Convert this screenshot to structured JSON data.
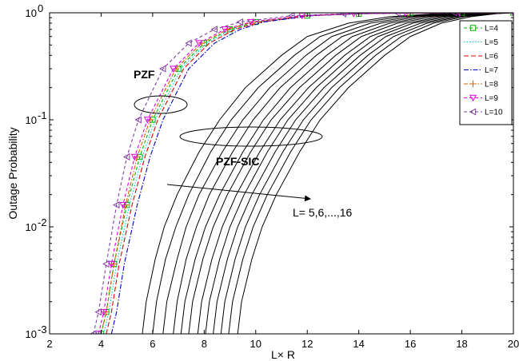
{
  "chart_data": {
    "type": "line",
    "xlabel": "L× R",
    "ylabel": "Outage Probability",
    "xlim": [
      2,
      20
    ],
    "ylim": [
      0.001,
      1
    ],
    "yscale": "log",
    "x_ticks": [
      "2",
      "4",
      "6",
      "8",
      "10",
      "12",
      "14",
      "16",
      "18",
      "20"
    ],
    "y_ticks": [
      {
        "base": "10",
        "exp": "-3"
      },
      {
        "base": "10",
        "exp": "-2"
      },
      {
        "base": "10",
        "exp": "-1"
      },
      {
        "base": "10",
        "exp": "0"
      }
    ],
    "legend_position": "top-right",
    "annotations": {
      "pzf": "PZF",
      "pzf_sic": "PZF-SIC",
      "range": "L= 5,6,...,16"
    },
    "pzf_series": [
      {
        "name": "L=4",
        "color": "#00b000",
        "dash": "4,3",
        "marker": "square",
        "x": [
          4.0,
          4.2,
          4.5,
          5.0,
          5.5,
          6.0,
          7.0,
          8.0,
          9.0,
          10.0,
          12.0,
          14.0,
          16.0,
          18.0,
          20.0
        ],
        "y": [
          0.001,
          0.0016,
          0.0045,
          0.016,
          0.045,
          0.1,
          0.3,
          0.52,
          0.7,
          0.82,
          0.94,
          0.98,
          0.995,
          0.999,
          1.0
        ]
      },
      {
        "name": "L=5",
        "color": "#00c8c8",
        "dash": "1.5,2",
        "marker": "none",
        "x": [
          4.1,
          4.3,
          4.6,
          5.1,
          5.6,
          6.1,
          7.1,
          8.1,
          9.1,
          10.1,
          12.0,
          14.0,
          16.0,
          18.0,
          20.0
        ],
        "y": [
          0.001,
          0.0016,
          0.0045,
          0.016,
          0.045,
          0.1,
          0.3,
          0.52,
          0.7,
          0.82,
          0.94,
          0.98,
          0.995,
          0.999,
          1.0
        ]
      },
      {
        "name": "L=6",
        "color": "#e00000",
        "dash": "6,3",
        "marker": "none",
        "x": [
          4.2,
          4.4,
          4.7,
          5.2,
          5.7,
          6.2,
          7.2,
          8.2,
          9.2,
          10.2,
          12.1,
          14.0,
          16.0,
          18.0,
          20.0
        ],
        "y": [
          0.001,
          0.0016,
          0.0045,
          0.016,
          0.045,
          0.1,
          0.3,
          0.52,
          0.7,
          0.82,
          0.94,
          0.98,
          0.995,
          0.999,
          1.0
        ]
      },
      {
        "name": "L=7",
        "color": "#0000c0",
        "dash": "6,2,1.5,2",
        "marker": "none",
        "x": [
          4.4,
          4.6,
          4.9,
          5.4,
          5.9,
          6.4,
          7.4,
          8.4,
          9.4,
          10.3,
          12.2,
          14.1,
          16.0,
          18.0,
          20.0
        ],
        "y": [
          0.001,
          0.0016,
          0.0045,
          0.016,
          0.045,
          0.1,
          0.3,
          0.52,
          0.7,
          0.82,
          0.94,
          0.98,
          0.995,
          0.999,
          1.0
        ]
      },
      {
        "name": "L=8",
        "color": "#e06000",
        "dash": "5,2,1.5,2",
        "marker": "plus",
        "x": [
          4.0,
          4.2,
          4.5,
          4.95,
          5.4,
          5.9,
          6.9,
          7.9,
          8.9,
          9.9,
          11.9,
          13.9,
          15.9,
          18.0,
          20.0
        ],
        "y": [
          0.001,
          0.0016,
          0.0045,
          0.016,
          0.045,
          0.1,
          0.3,
          0.52,
          0.7,
          0.82,
          0.94,
          0.98,
          0.995,
          0.999,
          1.0
        ]
      },
      {
        "name": "L=9",
        "color": "#e000e0",
        "dash": "4,3",
        "marker": "triangle-down",
        "x": [
          3.9,
          4.1,
          4.4,
          4.85,
          5.3,
          5.8,
          6.8,
          7.8,
          8.8,
          9.8,
          11.8,
          13.8,
          15.8,
          17.9,
          20.0
        ],
        "y": [
          0.001,
          0.0016,
          0.0045,
          0.016,
          0.045,
          0.1,
          0.3,
          0.52,
          0.7,
          0.82,
          0.94,
          0.98,
          0.995,
          0.999,
          1.0
        ]
      },
      {
        "name": "L=10",
        "color": "#8040a0",
        "dash": "4,3",
        "marker": "triangle-left",
        "x": [
          3.7,
          3.9,
          4.2,
          4.6,
          5.0,
          5.45,
          6.4,
          7.4,
          8.4,
          9.4,
          11.4,
          13.4,
          15.5,
          17.7,
          20.0
        ],
        "y": [
          0.001,
          0.0016,
          0.0045,
          0.016,
          0.045,
          0.1,
          0.3,
          0.52,
          0.7,
          0.82,
          0.94,
          0.98,
          0.995,
          0.999,
          1.0
        ]
      }
    ],
    "pzf_sic_series": {
      "color": "#000000",
      "y": [
        0.001,
        0.002,
        0.005,
        0.01,
        0.02,
        0.05,
        0.1,
        0.2,
        0.4,
        0.6,
        0.8,
        0.92,
        0.98,
        1.0
      ],
      "curves": [
        {
          "label": "L=5",
          "x": [
            5.6,
            5.75,
            6.1,
            6.45,
            6.95,
            7.8,
            8.6,
            9.6,
            11.0,
            12.0,
            13.6,
            15.2,
            17.0,
            18.6
          ]
        },
        {
          "label": "L=6",
          "x": [
            6.0,
            6.15,
            6.5,
            6.9,
            7.4,
            8.25,
            9.05,
            10.1,
            11.5,
            12.5,
            14.0,
            15.6,
            17.3,
            18.8
          ]
        },
        {
          "label": "L=7",
          "x": [
            6.4,
            6.55,
            6.95,
            7.3,
            7.8,
            8.7,
            9.5,
            10.55,
            11.95,
            12.95,
            14.45,
            16.0,
            17.6,
            19.0
          ]
        },
        {
          "label": "L=8",
          "x": [
            6.8,
            6.95,
            7.3,
            7.7,
            8.2,
            9.1,
            9.9,
            10.95,
            12.35,
            13.35,
            14.85,
            16.3,
            17.85,
            19.2
          ]
        },
        {
          "label": "L=9",
          "x": [
            7.1,
            7.25,
            7.65,
            8.05,
            8.6,
            9.5,
            10.3,
            11.35,
            12.75,
            13.75,
            15.2,
            16.6,
            18.1,
            19.35
          ]
        },
        {
          "label": "L=10",
          "x": [
            7.4,
            7.55,
            7.95,
            8.35,
            8.9,
            9.8,
            10.6,
            11.7,
            13.1,
            14.1,
            15.5,
            16.9,
            18.3,
            19.5
          ]
        },
        {
          "label": "L=11",
          "x": [
            7.75,
            7.9,
            8.3,
            8.7,
            9.25,
            10.15,
            10.95,
            12.05,
            13.45,
            14.45,
            15.85,
            17.2,
            18.5,
            19.6
          ]
        },
        {
          "label": "L=12",
          "x": [
            8.05,
            8.2,
            8.6,
            9.0,
            9.55,
            10.45,
            11.25,
            12.35,
            13.75,
            14.75,
            16.1,
            17.45,
            18.7,
            19.7
          ]
        },
        {
          "label": "L=13",
          "x": [
            8.35,
            8.5,
            8.9,
            9.3,
            9.85,
            10.75,
            11.55,
            12.65,
            14.05,
            15.05,
            16.4,
            17.7,
            18.9,
            19.8
          ]
        },
        {
          "label": "L=14",
          "x": [
            8.65,
            8.8,
            9.2,
            9.6,
            10.15,
            11.05,
            11.85,
            12.95,
            14.35,
            15.35,
            16.65,
            17.9,
            19.05,
            19.85
          ]
        },
        {
          "label": "L=15",
          "x": [
            8.95,
            9.1,
            9.5,
            9.9,
            10.45,
            11.35,
            12.15,
            13.25,
            14.65,
            15.65,
            16.9,
            18.1,
            19.2,
            19.9
          ]
        },
        {
          "label": "L=16",
          "x": [
            9.3,
            9.45,
            9.85,
            10.25,
            10.8,
            11.7,
            12.5,
            13.6,
            15.0,
            16.0,
            17.2,
            18.35,
            19.35,
            20.0
          ]
        }
      ]
    }
  }
}
